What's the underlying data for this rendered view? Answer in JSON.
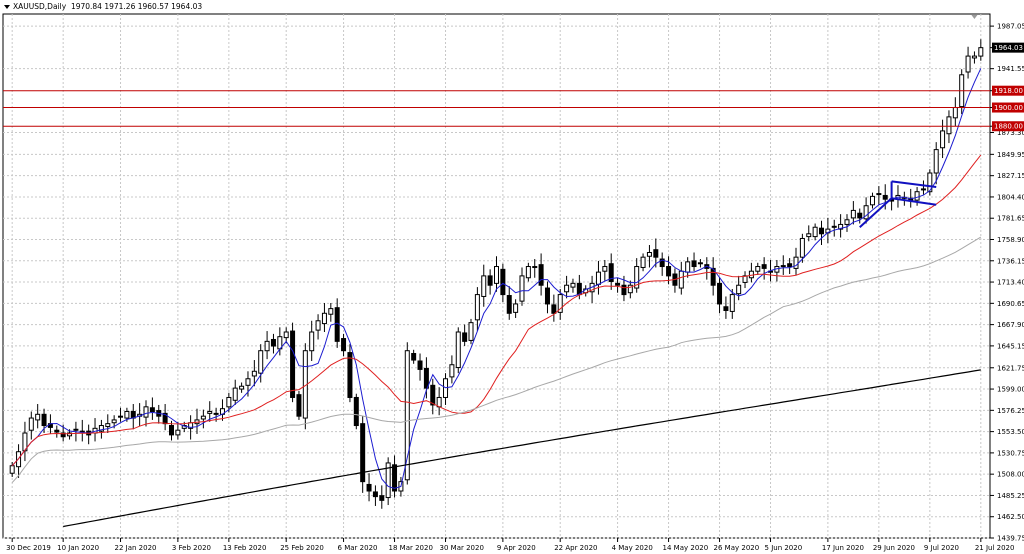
{
  "header": {
    "symbol": "XAUUSD,Daily",
    "ohlc": "1970.84 1971.26 1960.57 1964.03"
  },
  "colors": {
    "grid": "#c8c8c8",
    "candle": "#000000",
    "ma_fast": "#1c1cd0",
    "ma_mid": "#e02020",
    "ma_slow": "#a8a8a8",
    "ma_long": "#000000",
    "level_line": "#c00000",
    "level_badge": "#c00000",
    "price_badge": "#000000",
    "flag": "#1010c0"
  },
  "chart_data": {
    "type": "candlestick",
    "y_ticks": [
      "1987.05",
      "1964.03",
      "1941.55",
      "1918.00",
      "1900.00",
      "1880.00",
      "1873.30",
      "1849.95",
      "1827.15",
      "1804.40",
      "1781.65",
      "1758.90",
      "1736.15",
      "1713.40",
      "1690.65",
      "1667.90",
      "1645.15",
      "1621.75",
      "1599.00",
      "1576.25",
      "1553.50",
      "1530.75",
      "1508.00",
      "1485.25",
      "1462.50",
      "1439.75"
    ],
    "y_range": [
      1439.75,
      2000
    ],
    "x_ticks": [
      "30 Dec 2019",
      "10 Jan 2020",
      "22 Jan 2020",
      "3 Feb 2020",
      "13 Feb 2020",
      "25 Feb 2020",
      "6 Mar 2020",
      "18 Mar 2020",
      "30 Mar 2020",
      "9 Apr 2020",
      "22 Apr 2020",
      "4 May 2020",
      "14 May 2020",
      "26 May 2020",
      "5 Jun 2020",
      "17 Jun 2020",
      "29 Jun 2020",
      "9 Jul 2020",
      "21 Jul 2020"
    ],
    "levels": [
      {
        "value": 1918.0,
        "label": "1918.00"
      },
      {
        "value": 1900.0,
        "label": "1900.00"
      },
      {
        "value": 1880.0,
        "label": "1880.00"
      }
    ],
    "current_price": {
      "value": 1964.03,
      "label": "1964.03"
    },
    "closes": [
      1517,
      1532,
      1552,
      1568,
      1572,
      1560,
      1558,
      1553,
      1548,
      1552,
      1556,
      1554,
      1550,
      1557,
      1560,
      1562,
      1566,
      1570,
      1575,
      1568,
      1572,
      1580,
      1575,
      1570,
      1562,
      1550,
      1555,
      1560,
      1563,
      1566,
      1570,
      1575,
      1572,
      1578,
      1590,
      1600,
      1602,
      1610,
      1618,
      1640,
      1650,
      1645,
      1655,
      1660,
      1590,
      1570,
      1640,
      1660,
      1672,
      1680,
      1685,
      1650,
      1640,
      1590,
      1560,
      1500,
      1490,
      1484,
      1480,
      1520,
      1490,
      1500,
      1640,
      1630,
      1620,
      1600,
      1582,
      1590,
      1610,
      1625,
      1660,
      1650,
      1670,
      1700,
      1720,
      1710,
      1730,
      1700,
      1680,
      1690,
      1720,
      1730,
      1730,
      1710,
      1690,
      1680,
      1700,
      1710,
      1712,
      1700,
      1706,
      1712,
      1724,
      1730,
      1714,
      1710,
      1700,
      1710,
      1730,
      1740,
      1745,
      1740,
      1730,
      1720,
      1710,
      1725,
      1735,
      1730,
      1734,
      1728,
      1710,
      1690,
      1683,
      1700,
      1710,
      1720,
      1725,
      1730,
      1728,
      1725,
      1730,
      1730,
      1730,
      1740,
      1760,
      1765,
      1772,
      1765,
      1770,
      1772,
      1775,
      1780,
      1790,
      1782,
      1795,
      1805,
      1808,
      1802,
      1800,
      1806,
      1804,
      1800,
      1810,
      1812,
      1830,
      1855,
      1875,
      1890,
      1900,
      1935,
      1955,
      1955,
      1964
    ]
  }
}
